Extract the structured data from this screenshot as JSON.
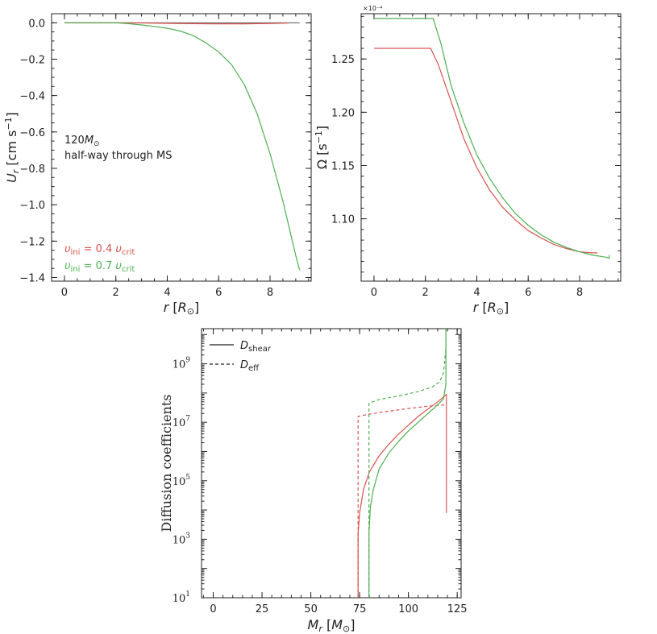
{
  "chart_data": [
    {
      "type": "line",
      "panel": "top-left",
      "xlabel": "r [R_⊙]",
      "ylabel": "U_r [cm s⁻¹]",
      "xlim": [
        -0.5,
        9.6
      ],
      "ylim": [
        -1.42,
        0.05
      ],
      "xticks": [
        0,
        2,
        4,
        6,
        8
      ],
      "xtick_labels": [
        "0",
        "2",
        "4",
        "6",
        "8"
      ],
      "yticks": [
        0.0,
        -0.2,
        -0.4,
        -0.6,
        -0.8,
        -1.0,
        -1.2,
        -1.4
      ],
      "ytick_labels": [
        "0.0",
        "−0.2",
        "−0.4",
        "−0.6",
        "−0.8",
        "−1.0",
        "−1.2",
        "−1.4"
      ],
      "annotations": [
        "120M⊙",
        "half-way through MS"
      ],
      "legend": [
        "υini = 0.4 υcrit",
        "υini = 0.7 υcrit"
      ],
      "series": [
        {
          "name": "υini = 0.4 υcrit",
          "color": "#d9534f",
          "x": [
            0,
            1,
            2,
            3,
            4,
            5,
            6,
            7,
            8,
            8.7
          ],
          "y": [
            0,
            0,
            0,
            -0.001,
            -0.003,
            -0.005,
            -0.006,
            -0.006,
            -0.004,
            -0.002
          ]
        },
        {
          "name": "υini = 0.7 υcrit",
          "color": "#4caf50",
          "x": [
            0,
            2,
            2.5,
            3,
            3.5,
            4,
            4.5,
            5,
            5.5,
            6,
            6.5,
            7,
            7.5,
            8,
            8.5,
            9,
            9.15
          ],
          "y": [
            0,
            0,
            -0.005,
            -0.012,
            -0.02,
            -0.03,
            -0.045,
            -0.07,
            -0.11,
            -0.16,
            -0.23,
            -0.34,
            -0.5,
            -0.72,
            -0.98,
            -1.28,
            -1.36
          ]
        },
        {
          "name": "zero-line",
          "color": "#666666",
          "x": [
            0,
            9.15
          ],
          "y": [
            0,
            0
          ]
        }
      ]
    },
    {
      "type": "line",
      "panel": "top-right",
      "xlabel": "r [R_⊙]",
      "ylabel": "Ω [s⁻¹]",
      "offset_text": "×10⁻⁴",
      "xlim": [
        -0.5,
        9.6
      ],
      "ylim": [
        1.0415,
        1.2925
      ],
      "xticks": [
        0,
        2,
        4,
        6,
        8
      ],
      "xtick_labels": [
        "0",
        "2",
        "4",
        "6",
        "8"
      ],
      "yticks": [
        1.1,
        1.15,
        1.2,
        1.25
      ],
      "ytick_labels": [
        "1.10",
        "1.15",
        "1.20",
        "1.25"
      ],
      "series": [
        {
          "name": "υini = 0.4 υcrit",
          "color": "#d9534f",
          "x": [
            0,
            2.2,
            2.5,
            3,
            3.5,
            4,
            4.5,
            5,
            5.5,
            6,
            6.5,
            7,
            7.5,
            8,
            8.5,
            8.7
          ],
          "y": [
            1.26,
            1.26,
            1.245,
            1.21,
            1.175,
            1.148,
            1.127,
            1.111,
            1.099,
            1.089,
            1.082,
            1.076,
            1.072,
            1.069,
            1.068,
            1.068
          ]
        },
        {
          "name": "υini = 0.7 υcrit",
          "color": "#4caf50",
          "x": [
            0,
            2.3,
            2.6,
            3,
            3.5,
            4,
            4.5,
            5,
            5.5,
            6,
            6.5,
            7,
            7.5,
            8,
            8.5,
            9,
            9.15,
            9.15
          ],
          "y": [
            1.288,
            1.288,
            1.265,
            1.225,
            1.19,
            1.16,
            1.138,
            1.12,
            1.105,
            1.094,
            1.085,
            1.078,
            1.073,
            1.069,
            1.066,
            1.064,
            1.063,
            1.066
          ]
        }
      ]
    },
    {
      "type": "line",
      "panel": "bottom",
      "xlabel": "M_r [M_⊙]",
      "ylabel": "Diffusion coefficients",
      "xlim": [
        -6,
        127
      ],
      "ylim_log10": [
        1,
        10.2
      ],
      "xticks": [
        0,
        25,
        50,
        75,
        100,
        125
      ],
      "xtick_labels": [
        "0",
        "25",
        "50",
        "75",
        "100",
        "125"
      ],
      "yticks_log10": [
        1,
        3,
        5,
        7,
        9
      ],
      "ytick_labels": [
        "10",
        "10",
        "10",
        "10",
        "10"
      ],
      "ytick_exponents": [
        "1",
        "3",
        "5",
        "7",
        "9"
      ],
      "legend": [
        "D_shear",
        "D_eff"
      ],
      "series": [
        {
          "name": "D_shear υini = 0.4 υcrit",
          "color": "#d9534f",
          "dash": "solid",
          "x": [
            74.2,
            74.2,
            75,
            77,
            80,
            85,
            90,
            95,
            100,
            105,
            110,
            115,
            119.5,
            119.5
          ],
          "log10y": [
            1,
            3.2,
            3.9,
            4.7,
            5.3,
            5.85,
            6.25,
            6.6,
            6.9,
            7.2,
            7.45,
            7.7,
            7.95,
            3.9
          ]
        },
        {
          "name": "D_eff υini = 0.4 υcrit",
          "color": "#d9534f",
          "dash": "dashed",
          "x": [
            74.2,
            74.2,
            80,
            90,
            100,
            110,
            119.5
          ],
          "log10y": [
            1,
            7.2,
            7.28,
            7.38,
            7.47,
            7.55,
            7.6
          ]
        },
        {
          "name": "D_shear υini = 0.7 υcrit",
          "color": "#4caf50",
          "dash": "solid",
          "x": [
            79.8,
            79.8,
            80.5,
            82,
            85,
            90,
            95,
            100,
            105,
            110,
            115,
            118,
            119.2,
            119.2
          ],
          "log10y": [
            1,
            3.2,
            4.1,
            4.7,
            5.4,
            5.95,
            6.35,
            6.7,
            7.0,
            7.3,
            7.6,
            7.8,
            8.3,
            10.2
          ]
        },
        {
          "name": "D_eff υini = 0.7 υcrit",
          "color": "#4caf50",
          "dash": "dashed",
          "x": [
            79.8,
            79.8,
            85,
            95,
            105,
            112,
            116,
            118,
            119.2,
            119.2
          ],
          "log10y": [
            1,
            7.65,
            7.78,
            7.9,
            8.05,
            8.2,
            8.38,
            8.7,
            9.5,
            10.2
          ]
        }
      ]
    }
  ]
}
